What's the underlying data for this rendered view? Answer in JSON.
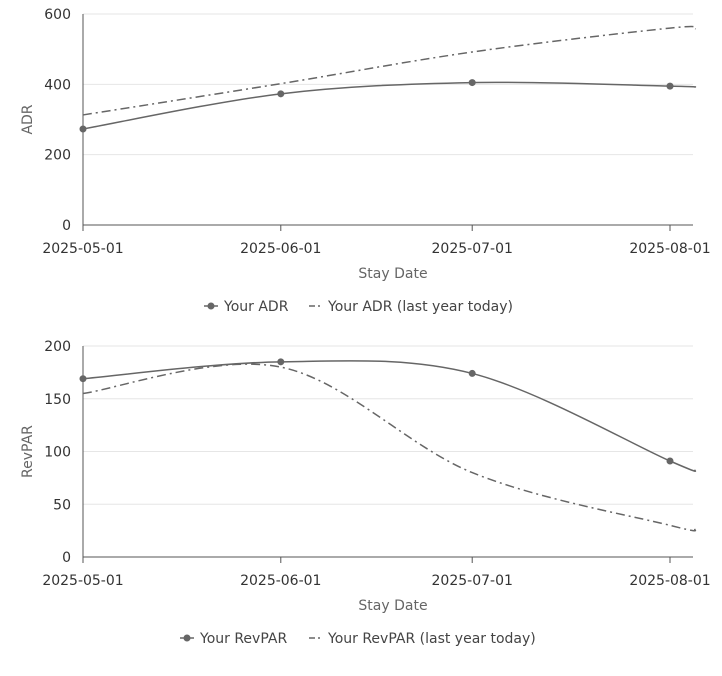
{
  "chart_data": [
    {
      "type": "line",
      "ylabel": "ADR",
      "xlabel": "Stay Date",
      "x": [
        "2025-05-01",
        "2025-06-01",
        "2025-07-01",
        "2025-08-01",
        "2025-08-05"
      ],
      "x_ticks": [
        "2025-05-01",
        "2025-06-01",
        "2025-07-01",
        "2025-08-01"
      ],
      "ylim": [
        0,
        600
      ],
      "y_ticks": [
        0,
        200,
        400,
        600
      ],
      "grid": true,
      "legend_position": "bottom-center",
      "series": [
        {
          "name": "Your ADR",
          "style": "solid",
          "markers": true,
          "values": [
            273,
            373,
            405,
            395,
            392
          ]
        },
        {
          "name": "Your ADR (last year today)",
          "style": "dashdot",
          "markers": false,
          "values": [
            313,
            402,
            492,
            560,
            558
          ]
        }
      ],
      "colors": {
        "line": "#666666"
      }
    },
    {
      "type": "line",
      "ylabel": "RevPAR",
      "xlabel": "Stay Date",
      "x": [
        "2025-05-01",
        "2025-06-01",
        "2025-07-01",
        "2025-08-01",
        "2025-08-05"
      ],
      "x_ticks": [
        "2025-05-01",
        "2025-06-01",
        "2025-07-01",
        "2025-08-01"
      ],
      "ylim": [
        0,
        200
      ],
      "y_ticks": [
        0,
        50,
        100,
        150,
        200
      ],
      "grid": true,
      "legend_position": "bottom-center",
      "series": [
        {
          "name": "Your RevPAR",
          "style": "solid",
          "markers": true,
          "values": [
            169,
            185,
            174,
            91,
            82
          ]
        },
        {
          "name": "Your RevPAR (last year today)",
          "style": "dashdot",
          "markers": false,
          "values": [
            155,
            180,
            80,
            30,
            26
          ]
        }
      ],
      "colors": {
        "line": "#666666"
      }
    }
  ]
}
